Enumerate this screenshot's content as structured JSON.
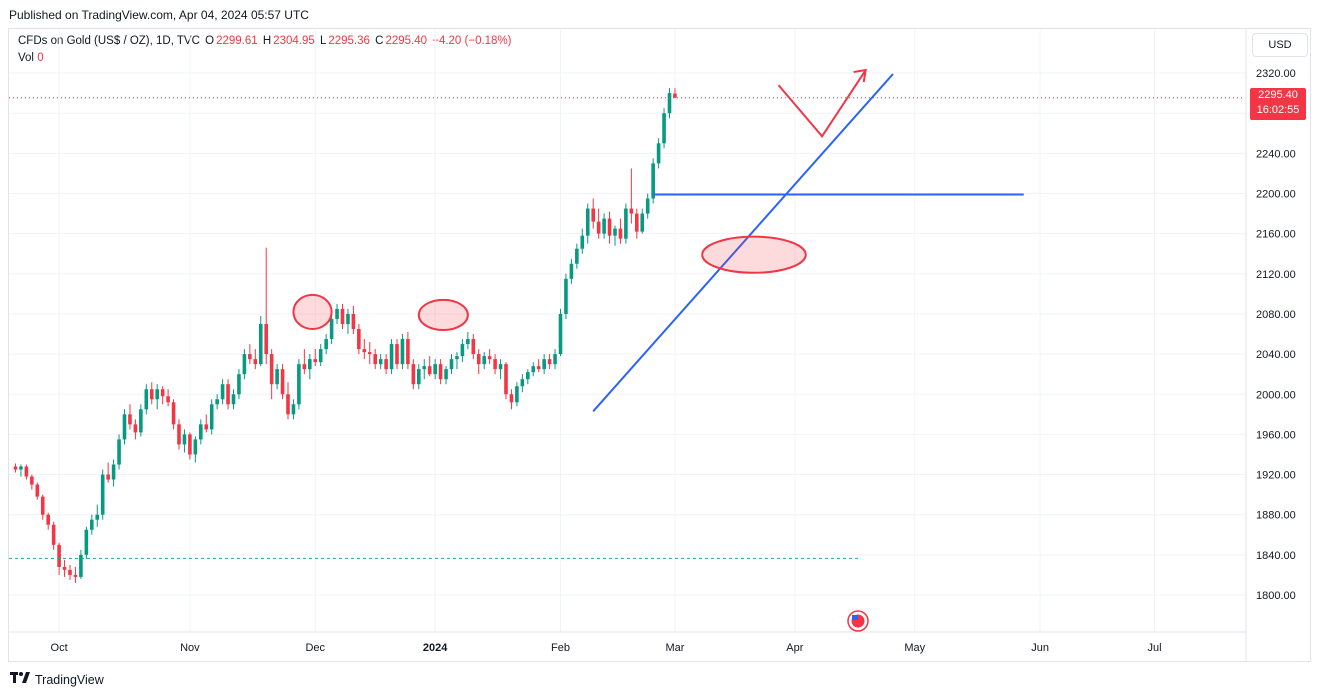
{
  "published": "Published on TradingView.com, Apr 04, 2024 05:57 UTC",
  "legend": {
    "symbol": "CFDs on Gold (US$ / OZ), 1D, TVC",
    "o_label": "O",
    "o": "2299.61",
    "h_label": "H",
    "h": "2304.95",
    "l_label": "L",
    "l": "2295.36",
    "c_label": "C",
    "c": "2295.40",
    "change": "−4.20 (−0.18%)",
    "vol_label": "Vol",
    "vol": "0"
  },
  "currency": "USD",
  "last_price": "2295.40",
  "countdown": "16:02:55",
  "footer_brand": "TradingView",
  "colors": {
    "up": "#089981",
    "down": "#f23645",
    "annotation_line": "#2962ff",
    "annotation_red": "#f23645"
  },
  "chart_data": {
    "type": "candlestick",
    "ylim": [
      1770,
      2335
    ],
    "yticks": [
      "2320.00",
      "2280.00",
      "2240.00",
      "2200.00",
      "2160.00",
      "2120.00",
      "2080.00",
      "2040.00",
      "2000.00",
      "1960.00",
      "1920.00",
      "1880.00",
      "1840.00",
      "1800.00"
    ],
    "ytick_values": [
      2320,
      2280,
      2240,
      2200,
      2160,
      2120,
      2080,
      2040,
      2000,
      1960,
      1920,
      1880,
      1840,
      1800
    ],
    "xlabels": [
      {
        "label": "Oct",
        "i": 3
      },
      {
        "label": "Nov",
        "i": 27
      },
      {
        "label": "Dec",
        "i": 50
      },
      {
        "label": "2024",
        "i": 72
      },
      {
        "label": "Feb",
        "i": 95
      },
      {
        "label": "Mar",
        "i": 116
      },
      {
        "label": "Apr",
        "i": 138
      },
      {
        "label": "May",
        "i": 160
      },
      {
        "label": "Jun",
        "i": 183
      },
      {
        "label": "Jul",
        "i": 204
      }
    ],
    "start_index": -5,
    "candles": [
      [
        1928,
        1931,
        1922,
        1925
      ],
      [
        1925,
        1930,
        1918,
        1928
      ],
      [
        1928,
        1930,
        1915,
        1918
      ],
      [
        1918,
        1920,
        1905,
        1910
      ],
      [
        1910,
        1912,
        1895,
        1898
      ],
      [
        1898,
        1900,
        1875,
        1880
      ],
      [
        1880,
        1882,
        1865,
        1870
      ],
      [
        1870,
        1873,
        1845,
        1850
      ],
      [
        1850,
        1852,
        1820,
        1828
      ],
      [
        1828,
        1835,
        1818,
        1825
      ],
      [
        1825,
        1830,
        1815,
        1820
      ],
      [
        1820,
        1828,
        1812,
        1818
      ],
      [
        1818,
        1845,
        1816,
        1840
      ],
      [
        1840,
        1868,
        1836,
        1865
      ],
      [
        1865,
        1880,
        1860,
        1875
      ],
      [
        1875,
        1890,
        1868,
        1880
      ],
      [
        1880,
        1925,
        1875,
        1920
      ],
      [
        1920,
        1932,
        1912,
        1915
      ],
      [
        1915,
        1935,
        1908,
        1930
      ],
      [
        1930,
        1960,
        1925,
        1955
      ],
      [
        1955,
        1985,
        1950,
        1980
      ],
      [
        1980,
        1990,
        1965,
        1970
      ],
      [
        1970,
        1975,
        1955,
        1962
      ],
      [
        1962,
        1990,
        1958,
        1985
      ],
      [
        1985,
        2010,
        1980,
        2005
      ],
      [
        2005,
        2012,
        1990,
        1995
      ],
      [
        1995,
        2010,
        1985,
        2005
      ],
      [
        2005,
        2008,
        1990,
        1998
      ],
      [
        1998,
        2005,
        1988,
        1992
      ],
      [
        1992,
        1995,
        1965,
        1970
      ],
      [
        1970,
        1975,
        1945,
        1950
      ],
      [
        1950,
        1965,
        1942,
        1960
      ],
      [
        1960,
        1962,
        1935,
        1940
      ],
      [
        1940,
        1958,
        1932,
        1955
      ],
      [
        1955,
        1975,
        1950,
        1970
      ],
      [
        1970,
        1980,
        1962,
        1965
      ],
      [
        1965,
        1995,
        1960,
        1990
      ],
      [
        1990,
        2000,
        1985,
        1995
      ],
      [
        1995,
        2015,
        1990,
        2010
      ],
      [
        2010,
        2015,
        1985,
        1990
      ],
      [
        1990,
        2005,
        1985,
        2000
      ],
      [
        2000,
        2025,
        1995,
        2020
      ],
      [
        2020,
        2045,
        2015,
        2040
      ],
      [
        2040,
        2050,
        2030,
        2035
      ],
      [
        2035,
        2045,
        2025,
        2030
      ],
      [
        2030,
        2078,
        2028,
        2070
      ],
      [
        2070,
        2146,
        2030,
        2040
      ],
      [
        2040,
        2045,
        1995,
        2010
      ],
      [
        2010,
        2030,
        2005,
        2025
      ],
      [
        2025,
        2030,
        1995,
        2000
      ],
      [
        2000,
        2012,
        1975,
        1980
      ],
      [
        1980,
        1995,
        1975,
        1990
      ],
      [
        1990,
        2035,
        1985,
        2030
      ],
      [
        2030,
        2045,
        2020,
        2025
      ],
      [
        2025,
        2040,
        2015,
        2035
      ],
      [
        2035,
        2045,
        2028,
        2032
      ],
      [
        2032,
        2050,
        2028,
        2045
      ],
      [
        2045,
        2060,
        2040,
        2055
      ],
      [
        2055,
        2080,
        2050,
        2075
      ],
      [
        2075,
        2090,
        2070,
        2085
      ],
      [
        2085,
        2090,
        2065,
        2070
      ],
      [
        2070,
        2085,
        2060,
        2080
      ],
      [
        2080,
        2088,
        2060,
        2065
      ],
      [
        2065,
        2070,
        2040,
        2045
      ],
      [
        2045,
        2055,
        2035,
        2042
      ],
      [
        2042,
        2052,
        2030,
        2040
      ],
      [
        2040,
        2045,
        2025,
        2030
      ],
      [
        2030,
        2040,
        2025,
        2035
      ],
      [
        2035,
        2040,
        2020,
        2025
      ],
      [
        2025,
        2055,
        2020,
        2050
      ],
      [
        2050,
        2055,
        2025,
        2030
      ],
      [
        2030,
        2060,
        2025,
        2055
      ],
      [
        2055,
        2062,
        2025,
        2030
      ],
      [
        2030,
        2035,
        2005,
        2010
      ],
      [
        2010,
        2030,
        2005,
        2025
      ],
      [
        2025,
        2035,
        2015,
        2028
      ],
      [
        2028,
        2038,
        2018,
        2020
      ],
      [
        2020,
        2035,
        2015,
        2030
      ],
      [
        2030,
        2035,
        2010,
        2015
      ],
      [
        2015,
        2028,
        2010,
        2025
      ],
      [
        2025,
        2040,
        2020,
        2035
      ],
      [
        2035,
        2042,
        2025,
        2038
      ],
      [
        2038,
        2055,
        2032,
        2050
      ],
      [
        2050,
        2062,
        2045,
        2055
      ],
      [
        2055,
        2060,
        2035,
        2040
      ],
      [
        2040,
        2045,
        2020,
        2030
      ],
      [
        2030,
        2042,
        2025,
        2038
      ],
      [
        2038,
        2045,
        2030,
        2035
      ],
      [
        2035,
        2040,
        2020,
        2025
      ],
      [
        2025,
        2035,
        2015,
        2030
      ],
      [
        2030,
        2032,
        1995,
        2000
      ],
      [
        2000,
        2005,
        1985,
        1992
      ],
      [
        1992,
        2012,
        1988,
        2008
      ],
      [
        2008,
        2020,
        2002,
        2015
      ],
      [
        2015,
        2025,
        2010,
        2022
      ],
      [
        2022,
        2032,
        2018,
        2028
      ],
      [
        2028,
        2035,
        2022,
        2025
      ],
      [
        2025,
        2040,
        2020,
        2035
      ],
      [
        2035,
        2040,
        2025,
        2030
      ],
      [
        2030,
        2045,
        2025,
        2040
      ],
      [
        2040,
        2085,
        2038,
        2080
      ],
      [
        2080,
        2120,
        2075,
        2115
      ],
      [
        2115,
        2135,
        2110,
        2130
      ],
      [
        2130,
        2150,
        2125,
        2145
      ],
      [
        2145,
        2165,
        2140,
        2158
      ],
      [
        2158,
        2190,
        2150,
        2185
      ],
      [
        2185,
        2195,
        2165,
        2172
      ],
      [
        2172,
        2185,
        2155,
        2160
      ],
      [
        2160,
        2180,
        2155,
        2175
      ],
      [
        2175,
        2182,
        2150,
        2158
      ],
      [
        2158,
        2168,
        2148,
        2165
      ],
      [
        2165,
        2175,
        2150,
        2155
      ],
      [
        2155,
        2190,
        2150,
        2185
      ],
      [
        2185,
        2225,
        2170,
        2180
      ],
      [
        2180,
        2185,
        2155,
        2162
      ],
      [
        2162,
        2185,
        2160,
        2180
      ],
      [
        2180,
        2200,
        2175,
        2195
      ],
      [
        2195,
        2235,
        2190,
        2230
      ],
      [
        2230,
        2255,
        2225,
        2250
      ],
      [
        2250,
        2285,
        2245,
        2280
      ],
      [
        2280,
        2305,
        2275,
        2300
      ],
      [
        2299.61,
        2304.95,
        2295.36,
        2295.4
      ]
    ],
    "last_price": 2295.4,
    "dashed_level": 1836.5,
    "annotations": {
      "horizontal_line": {
        "y": 2199,
        "from_i": 112,
        "to_i": 180
      },
      "trend_line": {
        "from_i": 101,
        "from_y": 1983,
        "to_i": 156,
        "to_y": 2319
      },
      "ellipses": [
        {
          "i": 49.5,
          "y": 2082,
          "ri": 3.5,
          "ry": 17
        },
        {
          "i": 73.5,
          "y": 2079,
          "ri": 4.5,
          "ry": 15
        },
        {
          "i": 130.5,
          "y": 2139,
          "ri": 9.5,
          "ry": 18
        }
      ],
      "arrow_path": [
        [
          135,
          2308
        ],
        [
          143,
          2257
        ],
        [
          151,
          2323
        ]
      ]
    }
  }
}
